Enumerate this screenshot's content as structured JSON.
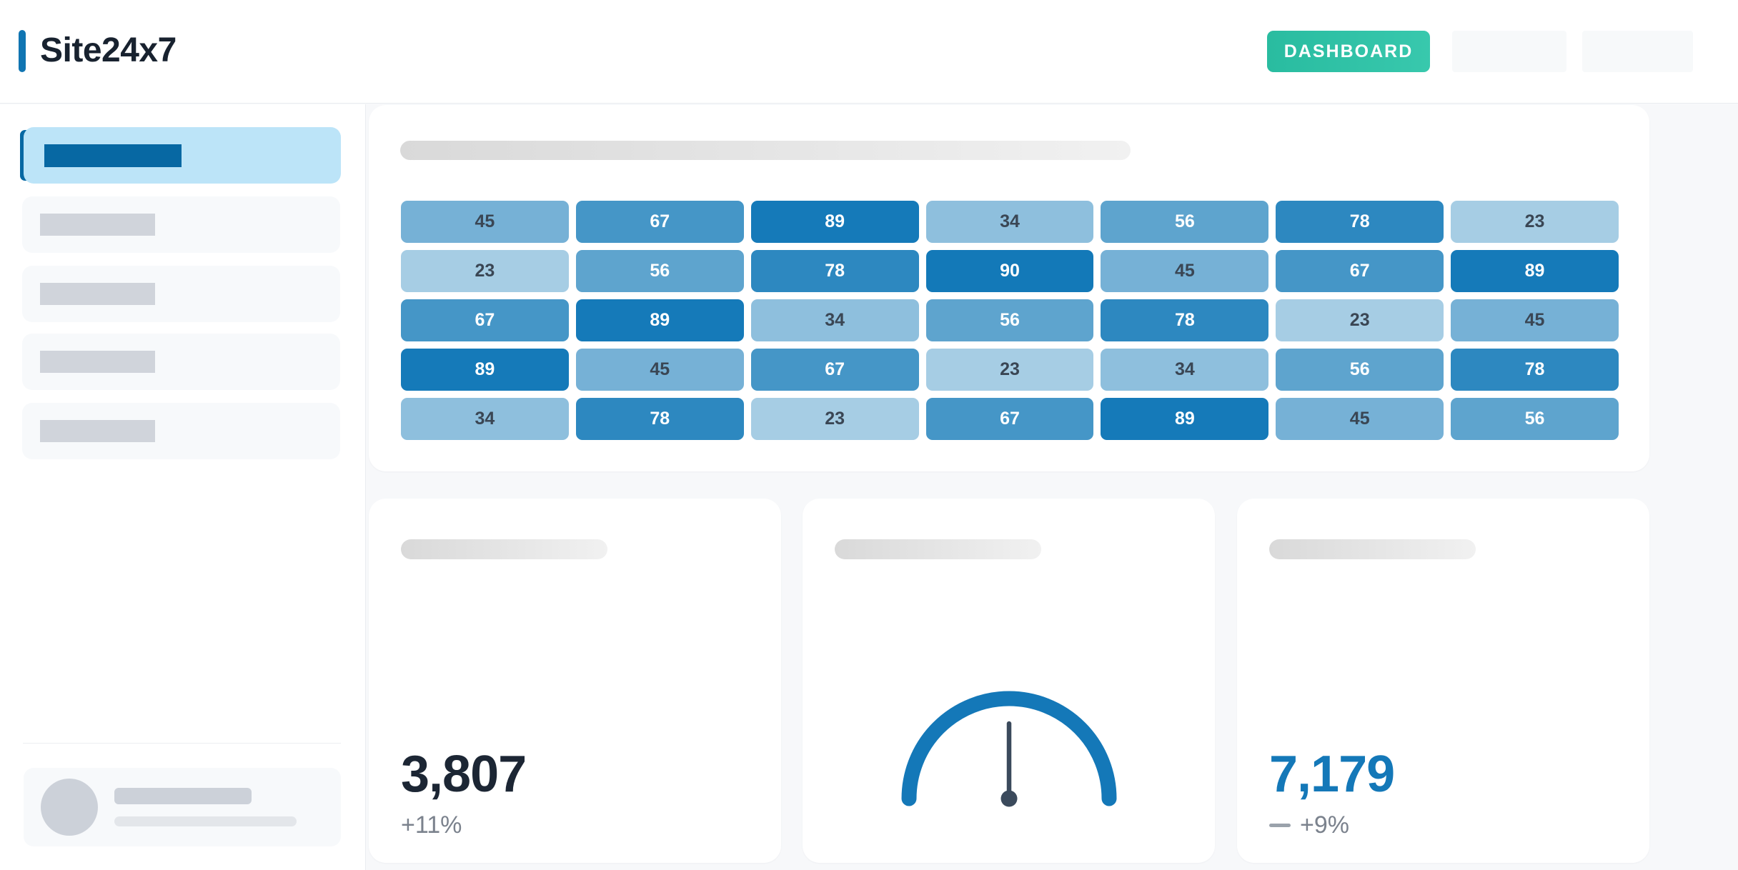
{
  "header": {
    "logo": "Site24x7",
    "dashboard_button": "DASHBOARD"
  },
  "colors": {
    "brand_blue": "#1075b2",
    "button_teal_start": "#29bca0",
    "button_teal_end": "#38c8ad",
    "active_item_bg": "#bce4f8",
    "active_item_accent": "#0768a3",
    "heatmap_min_color": "#a6cde4",
    "heatmap_max_color": "#1379b8",
    "heatmap_dark_text": "#3a4654",
    "heatmap_light_text": "#ffffff",
    "gauge_color": "#1478b8",
    "needle_color": "#3b4a5c",
    "stat_left_color": "#1c2634",
    "stat_right_color": "#1478b8",
    "delta_color": "#7b828d"
  },
  "chart_data": [
    {
      "type": "heatmap",
      "title": "",
      "rows": 5,
      "cols": 7,
      "values": [
        [
          45,
          67,
          89,
          34,
          56,
          78,
          23
        ],
        [
          23,
          56,
          78,
          90,
          45,
          67,
          89
        ],
        [
          67,
          89,
          34,
          56,
          78,
          23,
          45
        ],
        [
          89,
          45,
          67,
          23,
          34,
          56,
          78
        ],
        [
          34,
          78,
          23,
          67,
          89,
          45,
          56
        ]
      ],
      "value_min": 23,
      "value_max": 90,
      "white_text_threshold": 56,
      "legend": "none"
    },
    {
      "type": "gauge",
      "style": "semicircle",
      "needle": "vertical-center",
      "value_label": ""
    },
    {
      "type": "stat",
      "value": "3,807",
      "delta": "+11%"
    },
    {
      "type": "stat",
      "value": "7,179",
      "delta": "+9%"
    }
  ]
}
